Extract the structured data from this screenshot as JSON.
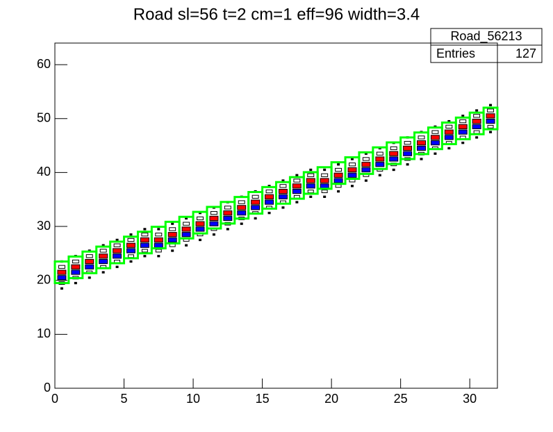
{
  "chart_data": {
    "type": "box2d",
    "title": "Road sl=56 t=2 cm=1 eff=96 width=3.4",
    "stats": {
      "name": "Road_56213",
      "entries_label": "Entries",
      "entries": 127
    },
    "xlim": [
      0,
      32
    ],
    "xticks": [
      0,
      5,
      10,
      15,
      20,
      25,
      30
    ],
    "ylim": [
      0,
      64
    ],
    "yticks": [
      0,
      10,
      20,
      30,
      40,
      50,
      60
    ],
    "bins": [
      0,
      1,
      2,
      3,
      4,
      5,
      6,
      7,
      8,
      9,
      10,
      11,
      12,
      13,
      14,
      15,
      16,
      17,
      18,
      19,
      20,
      21,
      22,
      23,
      24,
      25,
      26,
      27,
      28,
      29,
      30,
      31,
      32
    ],
    "road": {
      "color": "#00ff00",
      "ylow": [
        19.5,
        20.42,
        21.34,
        22.26,
        23.18,
        24.1,
        25.02,
        25.94,
        26.86,
        27.78,
        28.7,
        29.62,
        30.54,
        31.46,
        32.38,
        33.3,
        34.22,
        35.14,
        36.06,
        36.98,
        37.9,
        38.82,
        39.74,
        40.66,
        41.58,
        42.5,
        43.42,
        44.34,
        45.26,
        46.18,
        47.1,
        48.02
      ],
      "yhigh": [
        23.5,
        24.42,
        25.34,
        26.26,
        27.18,
        28.1,
        29.02,
        29.94,
        30.86,
        31.78,
        32.7,
        33.62,
        34.54,
        35.46,
        36.38,
        37.3,
        38.22,
        39.14,
        40.06,
        40.98,
        41.9,
        42.82,
        43.74,
        44.66,
        45.58,
        46.5,
        47.42,
        48.34,
        49.26,
        50.18,
        51.1,
        52.02
      ]
    },
    "layers": [
      {
        "color": "#ff0000",
        "values": [
          21.5,
          22.5,
          23.5,
          24.5,
          25.5,
          26.5,
          27.5,
          27.5,
          28.5,
          29.5,
          30.5,
          31.5,
          32.5,
          33.5,
          34.5,
          35.5,
          36.5,
          37.5,
          38.5,
          38.5,
          39.5,
          40.5,
          41.5,
          42.5,
          43.5,
          44.5,
          45.5,
          46.5,
          47.5,
          48.5,
          49.5,
          50.5
        ]
      },
      {
        "color": "#0000ff",
        "values": [
          20.5,
          21.5,
          22.5,
          23.5,
          24.5,
          25.5,
          26.5,
          26.5,
          27.5,
          28.5,
          29.5,
          30.5,
          31.5,
          32.5,
          33.5,
          34.5,
          35.5,
          36.5,
          37.5,
          37.5,
          38.5,
          39.5,
          40.5,
          41.5,
          42.5,
          43.5,
          44.5,
          45.5,
          46.5,
          47.5,
          48.5,
          49.5
        ]
      },
      {
        "color": "#ffffff",
        "values": [
          22.5,
          23.5,
          24.5,
          25.5,
          26.5,
          27.5,
          28.5,
          28.5,
          29.5,
          30.5,
          31.5,
          32.5,
          33.5,
          34.5,
          35.5,
          36.5,
          37.5,
          38.5,
          39.5,
          39.5,
          40.5,
          41.5,
          42.5,
          43.5,
          44.5,
          45.5,
          46.5,
          47.5,
          48.5,
          49.5,
          50.5,
          51.5
        ]
      },
      {
        "color": "#ffffff",
        "values": [
          19.5,
          20.5,
          21.5,
          22.5,
          23.5,
          24.5,
          25.5,
          25.5,
          26.5,
          27.5,
          28.5,
          29.5,
          30.5,
          31.5,
          32.5,
          33.5,
          34.5,
          35.5,
          36.5,
          36.5,
          37.5,
          38.5,
          39.5,
          40.5,
          41.5,
          42.5,
          43.5,
          44.5,
          45.5,
          46.5,
          47.5,
          48.5
        ]
      },
      {
        "color": "#000000",
        "values": [
          23.5,
          24.5,
          25.5,
          26.5,
          27.5,
          28.5,
          29.5,
          29.5,
          30.5,
          31.5,
          32.5,
          33.5,
          34.5,
          35.5,
          36.5,
          37.5,
          38.5,
          39.5,
          40.5,
          40.5,
          41.5,
          42.5,
          43.5,
          44.5,
          45.5,
          46.5,
          47.5,
          48.5,
          49.5,
          50.5,
          51.5,
          52.5
        ]
      },
      {
        "color": "#000000",
        "values": [
          18.5,
          19.5,
          20.5,
          21.5,
          22.5,
          23.5,
          24.5,
          24.5,
          25.5,
          26.5,
          27.5,
          28.5,
          29.5,
          30.5,
          31.5,
          32.5,
          33.5,
          34.5,
          35.5,
          35.5,
          36.5,
          37.5,
          38.5,
          39.5,
          40.5,
          41.5,
          42.5,
          43.5,
          44.5,
          45.5,
          46.5,
          47.5
        ]
      }
    ]
  }
}
